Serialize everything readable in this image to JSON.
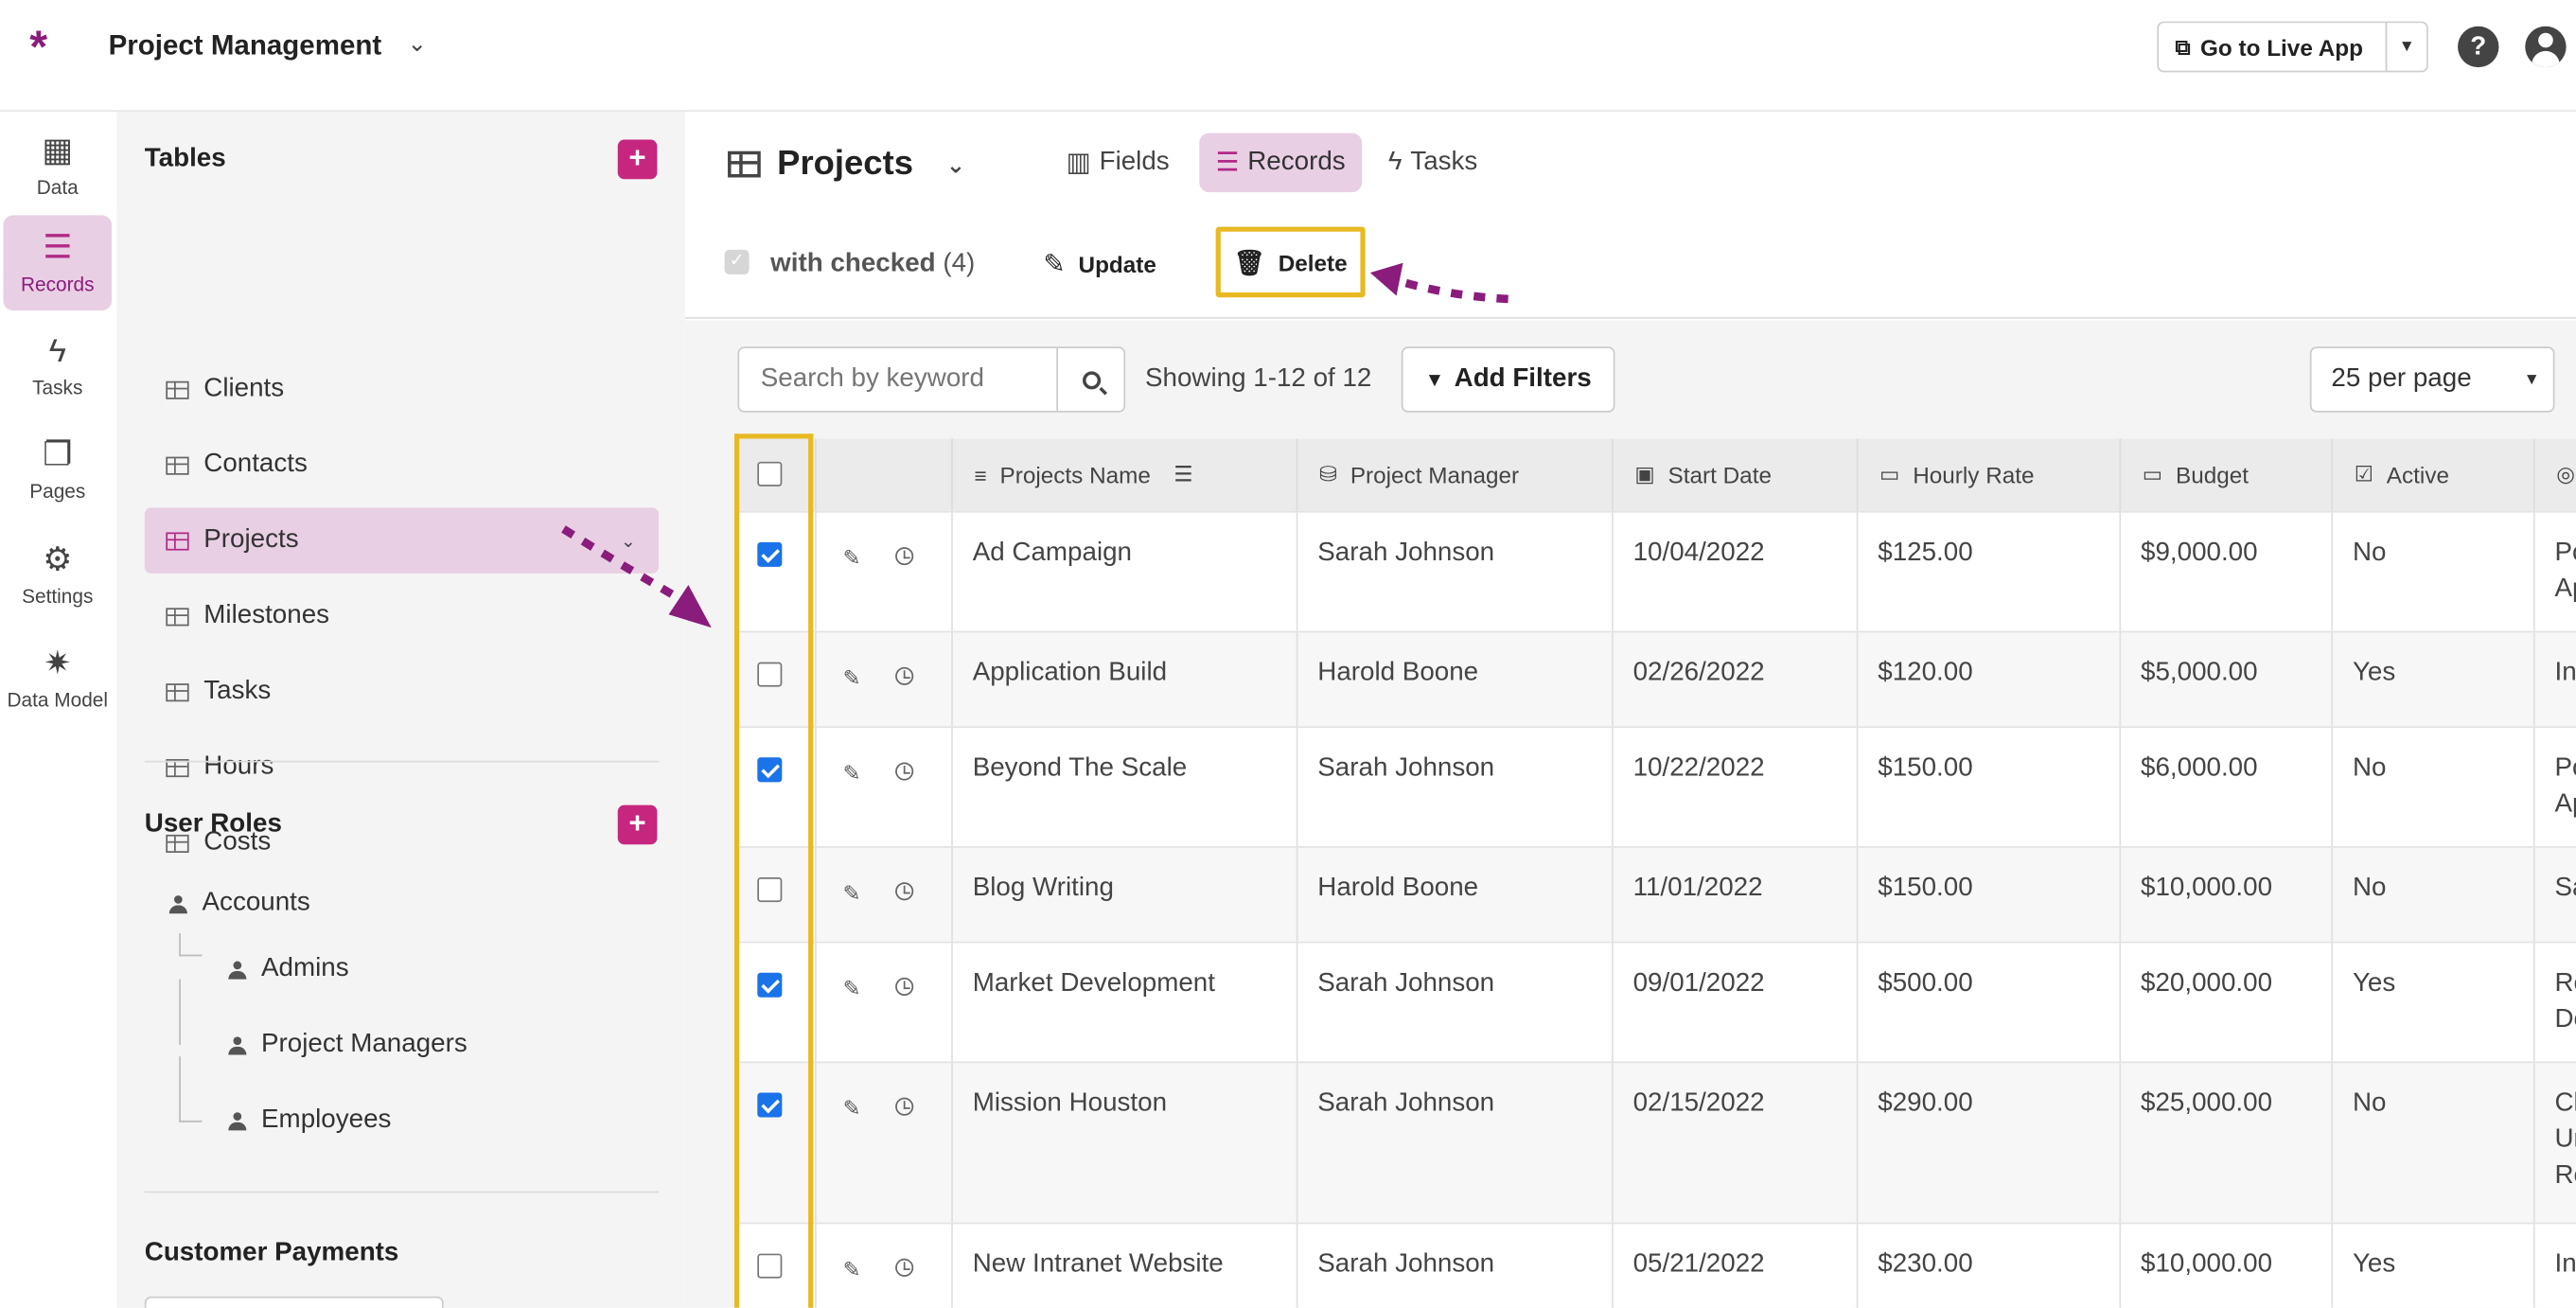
{
  "app": {
    "logo": "*",
    "title": "Project Management"
  },
  "topbar": {
    "live_app_label": "Go to Live App"
  },
  "leftnav": [
    {
      "label": "Data",
      "icon": "table-icon",
      "glyph": "▦"
    },
    {
      "label": "Records",
      "icon": "database-icon",
      "glyph": "☰"
    },
    {
      "label": "Tasks",
      "icon": "lightning-icon",
      "glyph": "ϟ"
    },
    {
      "label": "Pages",
      "icon": "pages-icon",
      "glyph": "❐"
    },
    {
      "label": "Settings",
      "icon": "gear-icon",
      "glyph": "⚙"
    },
    {
      "label": "Data Model",
      "icon": "data-model-icon",
      "glyph": "✷"
    }
  ],
  "sidebar": {
    "tables_header": "Tables",
    "tables": [
      "Clients",
      "Contacts",
      "Projects",
      "Milestones",
      "Tasks",
      "Hours",
      "Costs"
    ],
    "active_table": "Projects",
    "roles_header": "User Roles",
    "roles": [
      "Accounts",
      "Admins",
      "Project Managers",
      "Employees"
    ],
    "payments_header": "Customer Payments"
  },
  "main": {
    "title": "Projects",
    "tabs": [
      "Fields",
      "Records",
      "Tasks"
    ],
    "active_tab": "Records",
    "bulk": {
      "label": "with checked",
      "count": "(4)",
      "update": "Update",
      "delete": "Delete"
    },
    "search_placeholder": "Search by keyword",
    "showing": "Showing 1-12 of 12",
    "add_filters": "Add Filters",
    "per_page": "25 per page"
  },
  "table": {
    "columns": [
      "Projects Name",
      "Project Manager",
      "Start Date",
      "Hourly Rate",
      "Budget",
      "Active"
    ],
    "rows": [
      {
        "checked": true,
        "name": "Ad Campaign",
        "manager": "Sarah Johnson",
        "start": "10/04/2022",
        "rate": "$125.00",
        "budget": "$9,000.00",
        "active": "No",
        "extra": "Pc\nAp"
      },
      {
        "checked": false,
        "name": "Application Build",
        "manager": "Harold Boone",
        "start": "02/26/2022",
        "rate": "$120.00",
        "budget": "$5,000.00",
        "active": "Yes",
        "extra": "In"
      },
      {
        "checked": true,
        "name": "Beyond The Scale",
        "manager": "Sarah Johnson",
        "start": "10/22/2022",
        "rate": "$150.00",
        "budget": "$6,000.00",
        "active": "No",
        "extra": "Pc\nAp"
      },
      {
        "checked": false,
        "name": "Blog Writing",
        "manager": "Harold Boone",
        "start": "11/01/2022",
        "rate": "$150.00",
        "budget": "$10,000.00",
        "active": "No",
        "extra": "Sa"
      },
      {
        "checked": true,
        "name": "Market Development",
        "manager": "Sarah Johnson",
        "start": "09/01/2022",
        "rate": "$500.00",
        "budget": "$20,000.00",
        "active": "Yes",
        "extra": "Re\nDe"
      },
      {
        "checked": true,
        "name": "Mission Houston",
        "manager": "Sarah Johnson",
        "start": "02/15/2022",
        "rate": "$290.00",
        "budget": "$25,000.00",
        "active": "No",
        "extra": "Cl\nUr\nRe"
      },
      {
        "checked": false,
        "name": "New Intranet Website",
        "manager": "Sarah Johnson",
        "start": "05/21/2022",
        "rate": "$230.00",
        "budget": "$10,000.00",
        "active": "Yes",
        "extra": "In"
      }
    ]
  },
  "colors": {
    "accent": "#c7267f",
    "active_bg": "#e9cfe4",
    "highlight": "#e8b923",
    "arrow": "#8a1c7c",
    "checkbox": "#1a73e8"
  }
}
